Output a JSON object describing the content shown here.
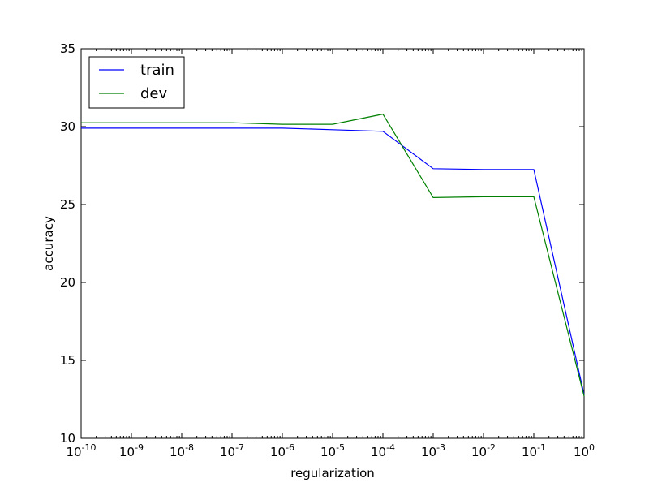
{
  "chart_data": {
    "type": "line",
    "xlabel": "regularization",
    "ylabel": "accuracy",
    "x_scale": "log",
    "x": [
      1e-10,
      1e-09,
      1e-08,
      1e-07,
      1e-06,
      1e-05,
      0.0001,
      0.001,
      0.01,
      0.1,
      1
    ],
    "xlim": [
      1e-10,
      1
    ],
    "ylim": [
      10,
      35
    ],
    "x_tick_labels": [
      {
        "base": "10",
        "exp": "-10"
      },
      {
        "base": "10",
        "exp": "-9"
      },
      {
        "base": "10",
        "exp": "-8"
      },
      {
        "base": "10",
        "exp": "-7"
      },
      {
        "base": "10",
        "exp": "-6"
      },
      {
        "base": "10",
        "exp": "-5"
      },
      {
        "base": "10",
        "exp": "-4"
      },
      {
        "base": "10",
        "exp": "-3"
      },
      {
        "base": "10",
        "exp": "-2"
      },
      {
        "base": "10",
        "exp": "-1"
      },
      {
        "base": "10",
        "exp": "0"
      }
    ],
    "y_ticks": [
      10,
      15,
      20,
      25,
      30,
      35
    ],
    "grid": false,
    "legend_position": "upper-left",
    "series": [
      {
        "name": "train",
        "color": "#0000ff",
        "values": [
          29.9,
          29.9,
          29.9,
          29.9,
          29.9,
          29.8,
          29.7,
          27.3,
          27.25,
          27.25,
          12.8
        ]
      },
      {
        "name": "dev",
        "color": "#008000",
        "values": [
          30.25,
          30.25,
          30.25,
          30.25,
          30.15,
          30.15,
          30.8,
          25.45,
          25.5,
          25.5,
          12.7
        ]
      }
    ]
  }
}
